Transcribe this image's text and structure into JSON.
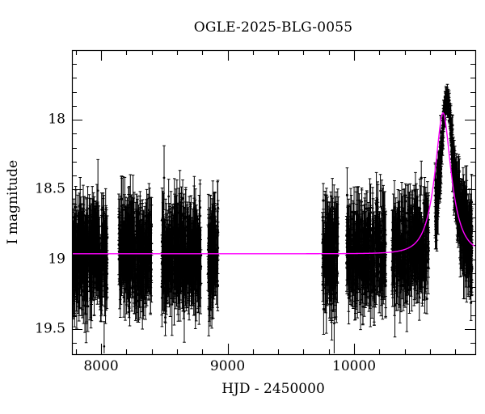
{
  "chart_data": {
    "type": "scatter",
    "title": "OGLE-2025-BLG-0055",
    "xlabel": "HJD - 2450000",
    "ylabel": "I magnitude",
    "xlim": [
      7770,
      10958
    ],
    "ylim": [
      19.68,
      17.5
    ],
    "grid": false,
    "legend": "none",
    "background_color": "#ffffff",
    "axis_color": "#000000",
    "point_color": "#000000",
    "model_color": "#ff00ff",
    "marker": "filled-circle-with-error-bars",
    "x_ticks": {
      "major_values": [
        8000,
        9000,
        10000
      ],
      "major_labels": [
        "8000",
        "9000",
        "10000"
      ],
      "minor_step": 200
    },
    "y_ticks": {
      "major_values": [
        18,
        18.5,
        19,
        19.5
      ],
      "major_labels": [
        "18",
        "18.5",
        "19",
        "19.5"
      ],
      "minor_step": 0.1
    },
    "baseline_mag": 18.96,
    "model_curve": {
      "type": "paczynski",
      "t0": 10703,
      "tE": 120,
      "u0": 0.42,
      "peak_mag": 17.96,
      "baseline_mag": 18.96
    },
    "observed_bump": {
      "type": "paczynski",
      "t0": 10733,
      "tE": 100,
      "u0": 0.37,
      "peak_mag": 17.83
    },
    "seasons": [
      {
        "start": 7770,
        "end": 8050,
        "n": 380
      },
      {
        "start": 8140,
        "end": 8400,
        "n": 340
      },
      {
        "start": 8480,
        "end": 8790,
        "n": 400
      },
      {
        "start": 8845,
        "end": 8925,
        "n": 100
      },
      {
        "start": 9748,
        "end": 9875,
        "n": 150
      },
      {
        "start": 9940,
        "end": 10250,
        "n": 340
      },
      {
        "start": 10300,
        "end": 10590,
        "n": 320
      },
      {
        "start": 10640,
        "end": 10932,
        "n": 450
      }
    ],
    "noise": {
      "baseline_sigma": 0.155,
      "min_sigma": 0.035,
      "bright_ref_mag": 17.83,
      "faint_ref_mag": 18.96,
      "seed": 42
    }
  }
}
